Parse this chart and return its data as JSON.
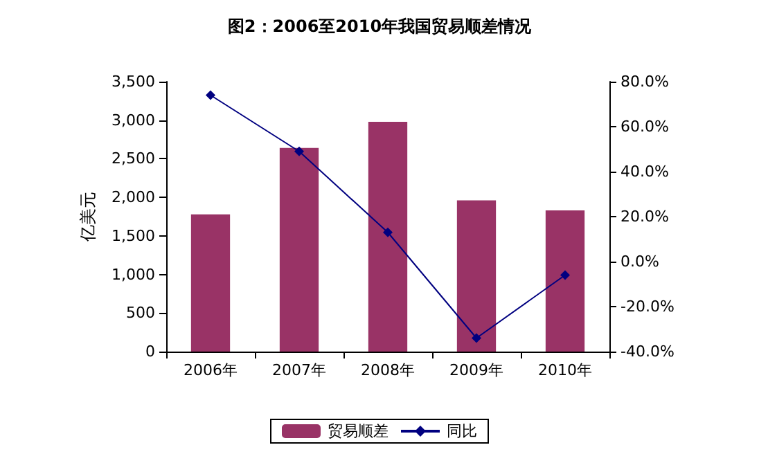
{
  "chart_data": {
    "type": "bar",
    "title": "图2：2006至2010年我国贸易顺差情况",
    "ylabel": "亿美元",
    "categories": [
      "2006年",
      "2007年",
      "2008年",
      "2009年",
      "2010年"
    ],
    "series": [
      {
        "name": "贸易顺差",
        "color": "#993366",
        "values": [
          1780,
          2640,
          2980,
          1960,
          1830
        ]
      },
      {
        "name": "同比",
        "type": "line",
        "axis": "y2",
        "color": "#000080",
        "marker": "diamond",
        "values": [
          74,
          49,
          13,
          -34,
          -6
        ]
      }
    ],
    "ylim": [
      0,
      3500
    ],
    "yticks": [
      {
        "value": 0,
        "label": "0"
      },
      {
        "value": 500,
        "label": "500"
      },
      {
        "value": 1000,
        "label": "1,000"
      },
      {
        "value": 1500,
        "label": "1,500"
      },
      {
        "value": 2000,
        "label": "2,000"
      },
      {
        "value": 2500,
        "label": "2,500"
      },
      {
        "value": 3000,
        "label": "3,000"
      },
      {
        "value": 3500,
        "label": "3,500"
      }
    ],
    "y2lim": [
      -40,
      80
    ],
    "y2ticks": [
      {
        "value": -40,
        "label": "-40.0%"
      },
      {
        "value": -20,
        "label": "-20.0%"
      },
      {
        "value": 0,
        "label": "0.0%"
      },
      {
        "value": 20,
        "label": "20.0%"
      },
      {
        "value": 40,
        "label": "40.0%"
      },
      {
        "value": 60,
        "label": "60.0%"
      },
      {
        "value": 80,
        "label": "80.0%"
      }
    ],
    "grid": false,
    "legend": "bottom"
  }
}
